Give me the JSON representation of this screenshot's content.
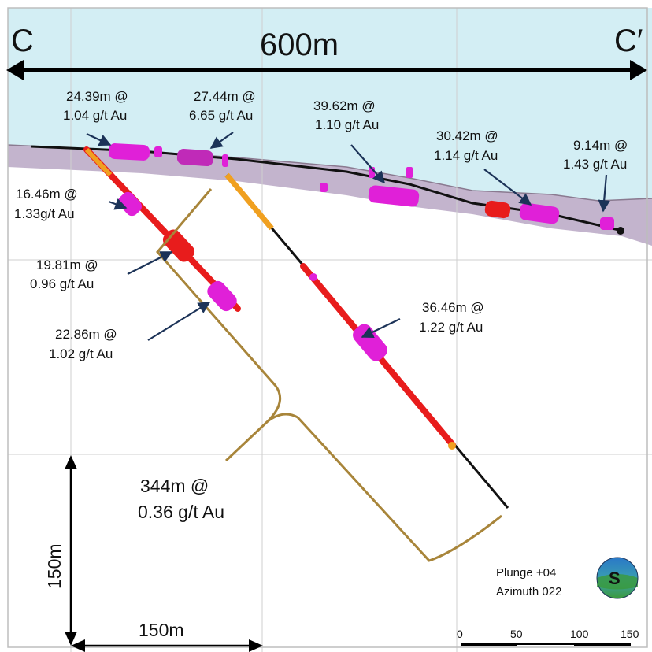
{
  "section": {
    "start_label": "C",
    "end_label": "C′",
    "width_label": "600m"
  },
  "scale": {
    "vertical_label": "150m",
    "horizontal_label": "150m",
    "bar_ticks": [
      "0",
      "50",
      "100",
      "150"
    ]
  },
  "orientation": {
    "plunge": "Plunge +04",
    "azimuth": "Azimuth 022",
    "compass_letter": "S"
  },
  "intercepts": [
    {
      "length": "24.39m @",
      "grade": "1.04 g/t Au"
    },
    {
      "length": "27.44m @",
      "grade": "6.65 g/t Au"
    },
    {
      "length": "39.62m @",
      "grade": "1.10 g/t Au"
    },
    {
      "length": "30.42m @",
      "grade": "1.14 g/t Au"
    },
    {
      "length": "9.14m @",
      "grade": "1.43 g/t Au"
    },
    {
      "length": "16.46m @",
      "grade": "1.33g/t Au"
    },
    {
      "length": "19.81m @",
      "grade": "0.96 g/t Au"
    },
    {
      "length": "22.86m @",
      "grade": "1.02 g/t Au"
    },
    {
      "length": "36.46m @",
      "grade": "1.22 g/t Au"
    }
  ],
  "highlight": {
    "length": "344m @",
    "grade": "0.36 g/t Au"
  },
  "colors": {
    "sky": "#d3eef4",
    "ground_band": "#b9a7c4",
    "drill_trace": "#111111",
    "low_grade": "#e81c1c",
    "high_grade": "#e020d8",
    "trace_grade": "#f0a020",
    "envelope": "#a8853a",
    "leader": "#1c3358"
  }
}
